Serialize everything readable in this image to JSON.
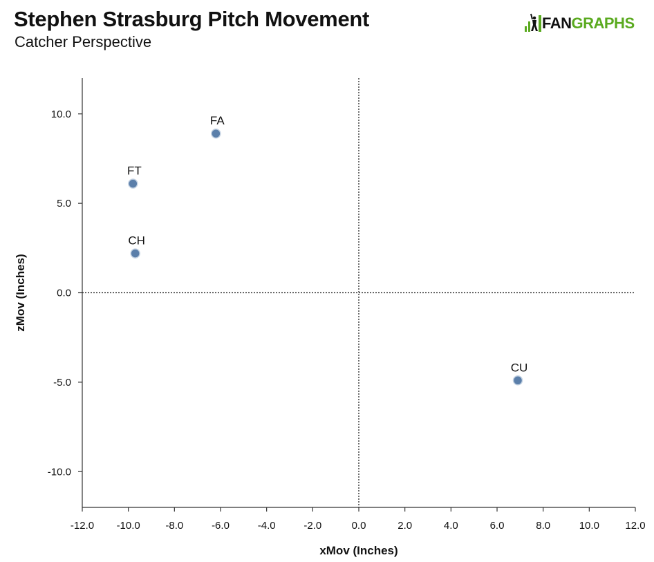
{
  "header": {
    "title": "Stephen Strasburg Pitch Movement",
    "subtitle": "Catcher Perspective"
  },
  "logo": {
    "text_left": "FAN",
    "text_right": "GRAPHS",
    "icon": "fangraphs-batter-icon",
    "brand_color": "#5aaa1f"
  },
  "chart_data": {
    "type": "scatter",
    "xlabel": "xMov (Inches)",
    "ylabel": "zMov (Inches)",
    "xlim": [
      -12,
      12
    ],
    "ylim": [
      -12,
      12
    ],
    "x_ticks": [
      "-12.0",
      "-10.0",
      "-8.0",
      "-6.0",
      "-4.0",
      "-2.0",
      "0.0",
      "2.0",
      "4.0",
      "6.0",
      "8.0",
      "10.0",
      "12.0"
    ],
    "y_ticks": [
      "10.0",
      "5.0",
      "0.0",
      "-5.0",
      "-10.0"
    ],
    "grid": false,
    "reference_lines": "dotted lines at x = 0 and y = 0",
    "marker_color": "#5b7faa",
    "points": [
      {
        "label": "FA",
        "x": -6.2,
        "y": 8.9
      },
      {
        "label": "FT",
        "x": -9.8,
        "y": 6.1
      },
      {
        "label": "CH",
        "x": -9.7,
        "y": 2.2
      },
      {
        "label": "CU",
        "x": 6.9,
        "y": -4.9
      }
    ]
  }
}
